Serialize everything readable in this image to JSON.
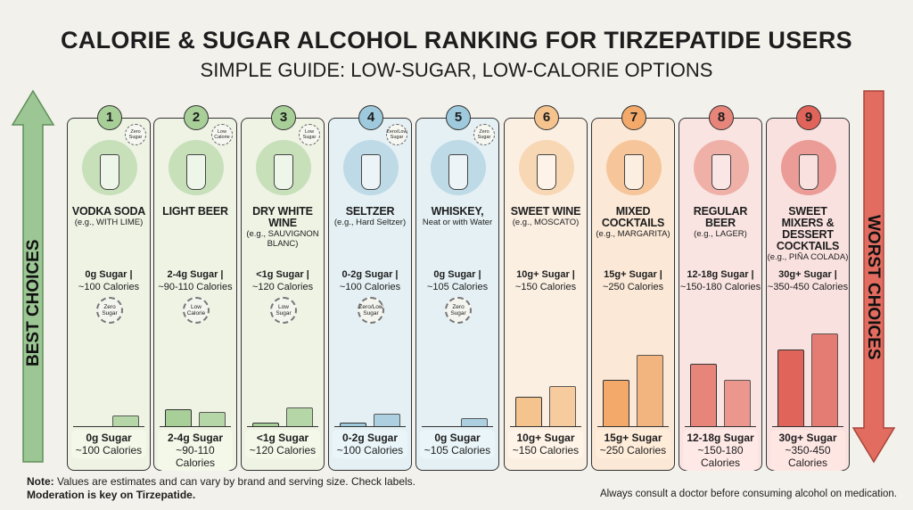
{
  "title": "CALORIE & SUGAR ALCOHOL RANKING FOR TIRZEPATIDE USERS",
  "subtitle": "SIMPLE GUIDE: LOW-SUGAR, LOW-CALORIE OPTIONS",
  "left_arrow": {
    "label": "BEST CHOICES",
    "color": "#8fc08a"
  },
  "right_arrow": {
    "label": "WORST CHOICES",
    "color": "#e0645a"
  },
  "items": [
    {
      "rank": "1",
      "name": "VODKA SODA",
      "example": "(e.g., WITH LIME)",
      "sugar": "0g Sugar |",
      "calories": "~100 Calories",
      "badge_top": "Zero Sugar",
      "badge_mid": "Zero Sugar",
      "foot_sugar": "0g Sugar",
      "foot_cal": "~100 Calories",
      "bg": "#eef3e4",
      "accent": "#a8cf98",
      "icon": "glass-with-lime-icon"
    },
    {
      "rank": "2",
      "name": "LIGHT BEER",
      "example": "",
      "sugar": "2-4g Sugar |",
      "calories": "~90-110 Calories",
      "badge_top": "Low Calorie",
      "badge_mid": "Low Calorie",
      "foot_sugar": "2-4g Sugar",
      "foot_cal": "~90-110 Calories",
      "bg": "#eef3e4",
      "accent": "#a8cf98",
      "icon": "beer-bottle-icon"
    },
    {
      "rank": "3",
      "name": "DRY WHITE WINE",
      "example": "(e.g., SAUVIGNON BLANC)",
      "sugar": "<1g Sugar |",
      "calories": "~120 Calories",
      "badge_top": "Low Sugar",
      "badge_mid": "Low Sugar",
      "foot_sugar": "<1g Sugar",
      "foot_cal": "~120 Calories",
      "bg": "#eef3e4",
      "accent": "#a8cf98",
      "icon": "wine-glass-icon"
    },
    {
      "rank": "4",
      "name": "SELTZER",
      "example": "(e.g., Hard Seltzer)",
      "sugar": "0-2g Sugar |",
      "calories": "~100 Calories",
      "badge_top": "Zero/Low Sugar",
      "badge_mid": "Zero/Low Sugar",
      "foot_sugar": "0-2g Sugar",
      "foot_cal": "~100 Calories",
      "bg": "#e4f0f4",
      "accent": "#9fc9dc",
      "icon": "seltzer-can-icon"
    },
    {
      "rank": "5",
      "name": "WHISKEY,",
      "example": "Neat or with Water",
      "sugar": "0g Sugar |",
      "calories": "~105 Calories",
      "badge_top": "Zero Sugar",
      "badge_mid": "Zero Sugar",
      "foot_sugar": "0g Sugar",
      "foot_cal": "~105 Calories",
      "bg": "#e4f0f4",
      "accent": "#9fc9dc",
      "icon": "whiskey-glass-icon"
    },
    {
      "rank": "6",
      "name": "SWEET WINE",
      "example": "(e.g., MOSCATO)",
      "sugar": "10g+ Sugar |",
      "calories": "~150 Calories",
      "badge_top": "",
      "badge_mid": "",
      "foot_sugar": "10g+ Sugar",
      "foot_cal": "~150 Calories",
      "bg": "#fbefe2",
      "accent": "#f5c38e",
      "icon": "wine-glass-icon"
    },
    {
      "rank": "7",
      "name": "MIXED COCKTAILS",
      "example": "(e.g., MARGARITA)",
      "sugar": "15g+ Sugar |",
      "calories": "~250 Calories",
      "badge_top": "",
      "badge_mid": "",
      "foot_sugar": "15g+ Sugar",
      "foot_cal": "~250 Calories",
      "bg": "#fbe8d6",
      "accent": "#f2a96a",
      "icon": "margarita-glass-icon"
    },
    {
      "rank": "8",
      "name": "REGULAR BEER",
      "example": "(e.g., LAGER)",
      "sugar": "12-18g Sugar |",
      "calories": "~150-180 Calories",
      "badge_top": "",
      "badge_mid": "",
      "foot_sugar": "12-18g Sugar",
      "foot_cal": "~150-180 Calories",
      "bg": "#f9e4e1",
      "accent": "#e8857a",
      "icon": "beer-pint-icon"
    },
    {
      "rank": "9",
      "name": "SWEET MIXERS & DESSERT COCKTAILS",
      "example": "(e.g., PIÑA COLADA)",
      "sugar": "30g+ Sugar |",
      "calories": "~350-450 Calories",
      "badge_top": "",
      "badge_mid": "",
      "foot_sugar": "30g+ Sugar",
      "foot_cal": "~350-450 Calories",
      "bg": "#f9e1df",
      "accent": "#e0645a",
      "icon": "pina-colada-glass-icon"
    }
  ],
  "chart_data": {
    "type": "bar",
    "categories": [
      "VODKA SODA",
      "LIGHT BEER",
      "DRY WHITE WINE",
      "SELTZER",
      "WHISKEY",
      "SWEET WINE",
      "MIXED COCKTAILS",
      "REGULAR BEER",
      "SWEET MIXERS & DESSERT COCKTAILS"
    ],
    "series": [
      {
        "values": [
          0,
          18,
          4,
          4,
          0,
          32,
          50,
          67,
          83
        ]
      },
      {
        "values": [
          12,
          15,
          20,
          13,
          9,
          43,
          77,
          50,
          100
        ]
      }
    ],
    "ylim": [
      0,
      100
    ],
    "grid": false
  },
  "note": {
    "bold": "Note:",
    "text": " Values are estimates and can vary by brand and serving size. Check labels.",
    "line2": "Moderation is key on Tirzepatide."
  },
  "consult": "Always consult a doctor before consuming alcohol on medication."
}
